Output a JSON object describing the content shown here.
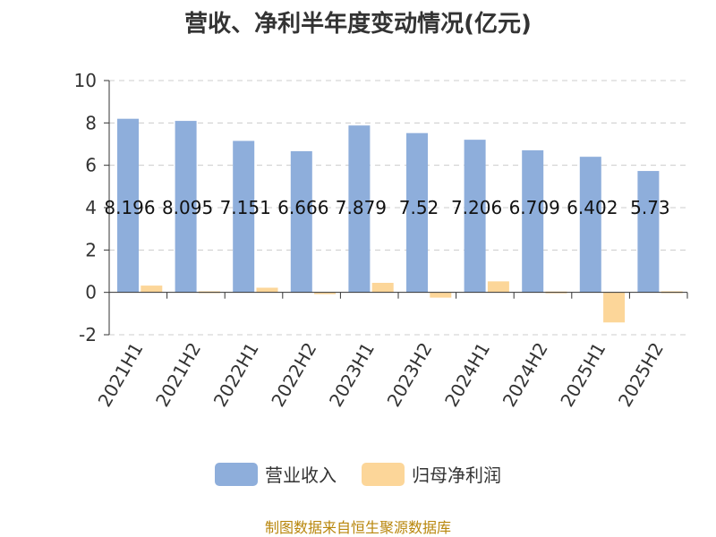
{
  "chart_data": {
    "type": "bar",
    "title": "营收、净利半年度变动情况(亿元)",
    "categories": [
      "2021H1",
      "2021H2",
      "2022H1",
      "2022H2",
      "2023H1",
      "2023H2",
      "2024H1",
      "2024H2",
      "2025H1",
      "2025H2"
    ],
    "series": [
      {
        "name": "营业收入",
        "color": "#8eaedb",
        "values": [
          8.196,
          8.095,
          7.151,
          6.666,
          7.879,
          7.52,
          7.206,
          6.709,
          6.402,
          5.73
        ],
        "labels": [
          "8.196",
          "8.095",
          "7.151",
          "6.666",
          "7.879",
          "7.52",
          "7.206",
          "6.709",
          "6.402",
          "5.73"
        ]
      },
      {
        "name": "归母净利润",
        "color": "#fcd699",
        "values": [
          0.32,
          0.05,
          0.22,
          -0.06,
          0.45,
          -0.25,
          0.52,
          0.04,
          -1.42,
          0.05
        ]
      }
    ],
    "ylim": [
      -2,
      10
    ],
    "yticks": [
      -2,
      0,
      2,
      4,
      6,
      8,
      10
    ],
    "grid": true,
    "legend": "bottom-center"
  },
  "source_text": "制图数据来自恒生聚源数据库"
}
